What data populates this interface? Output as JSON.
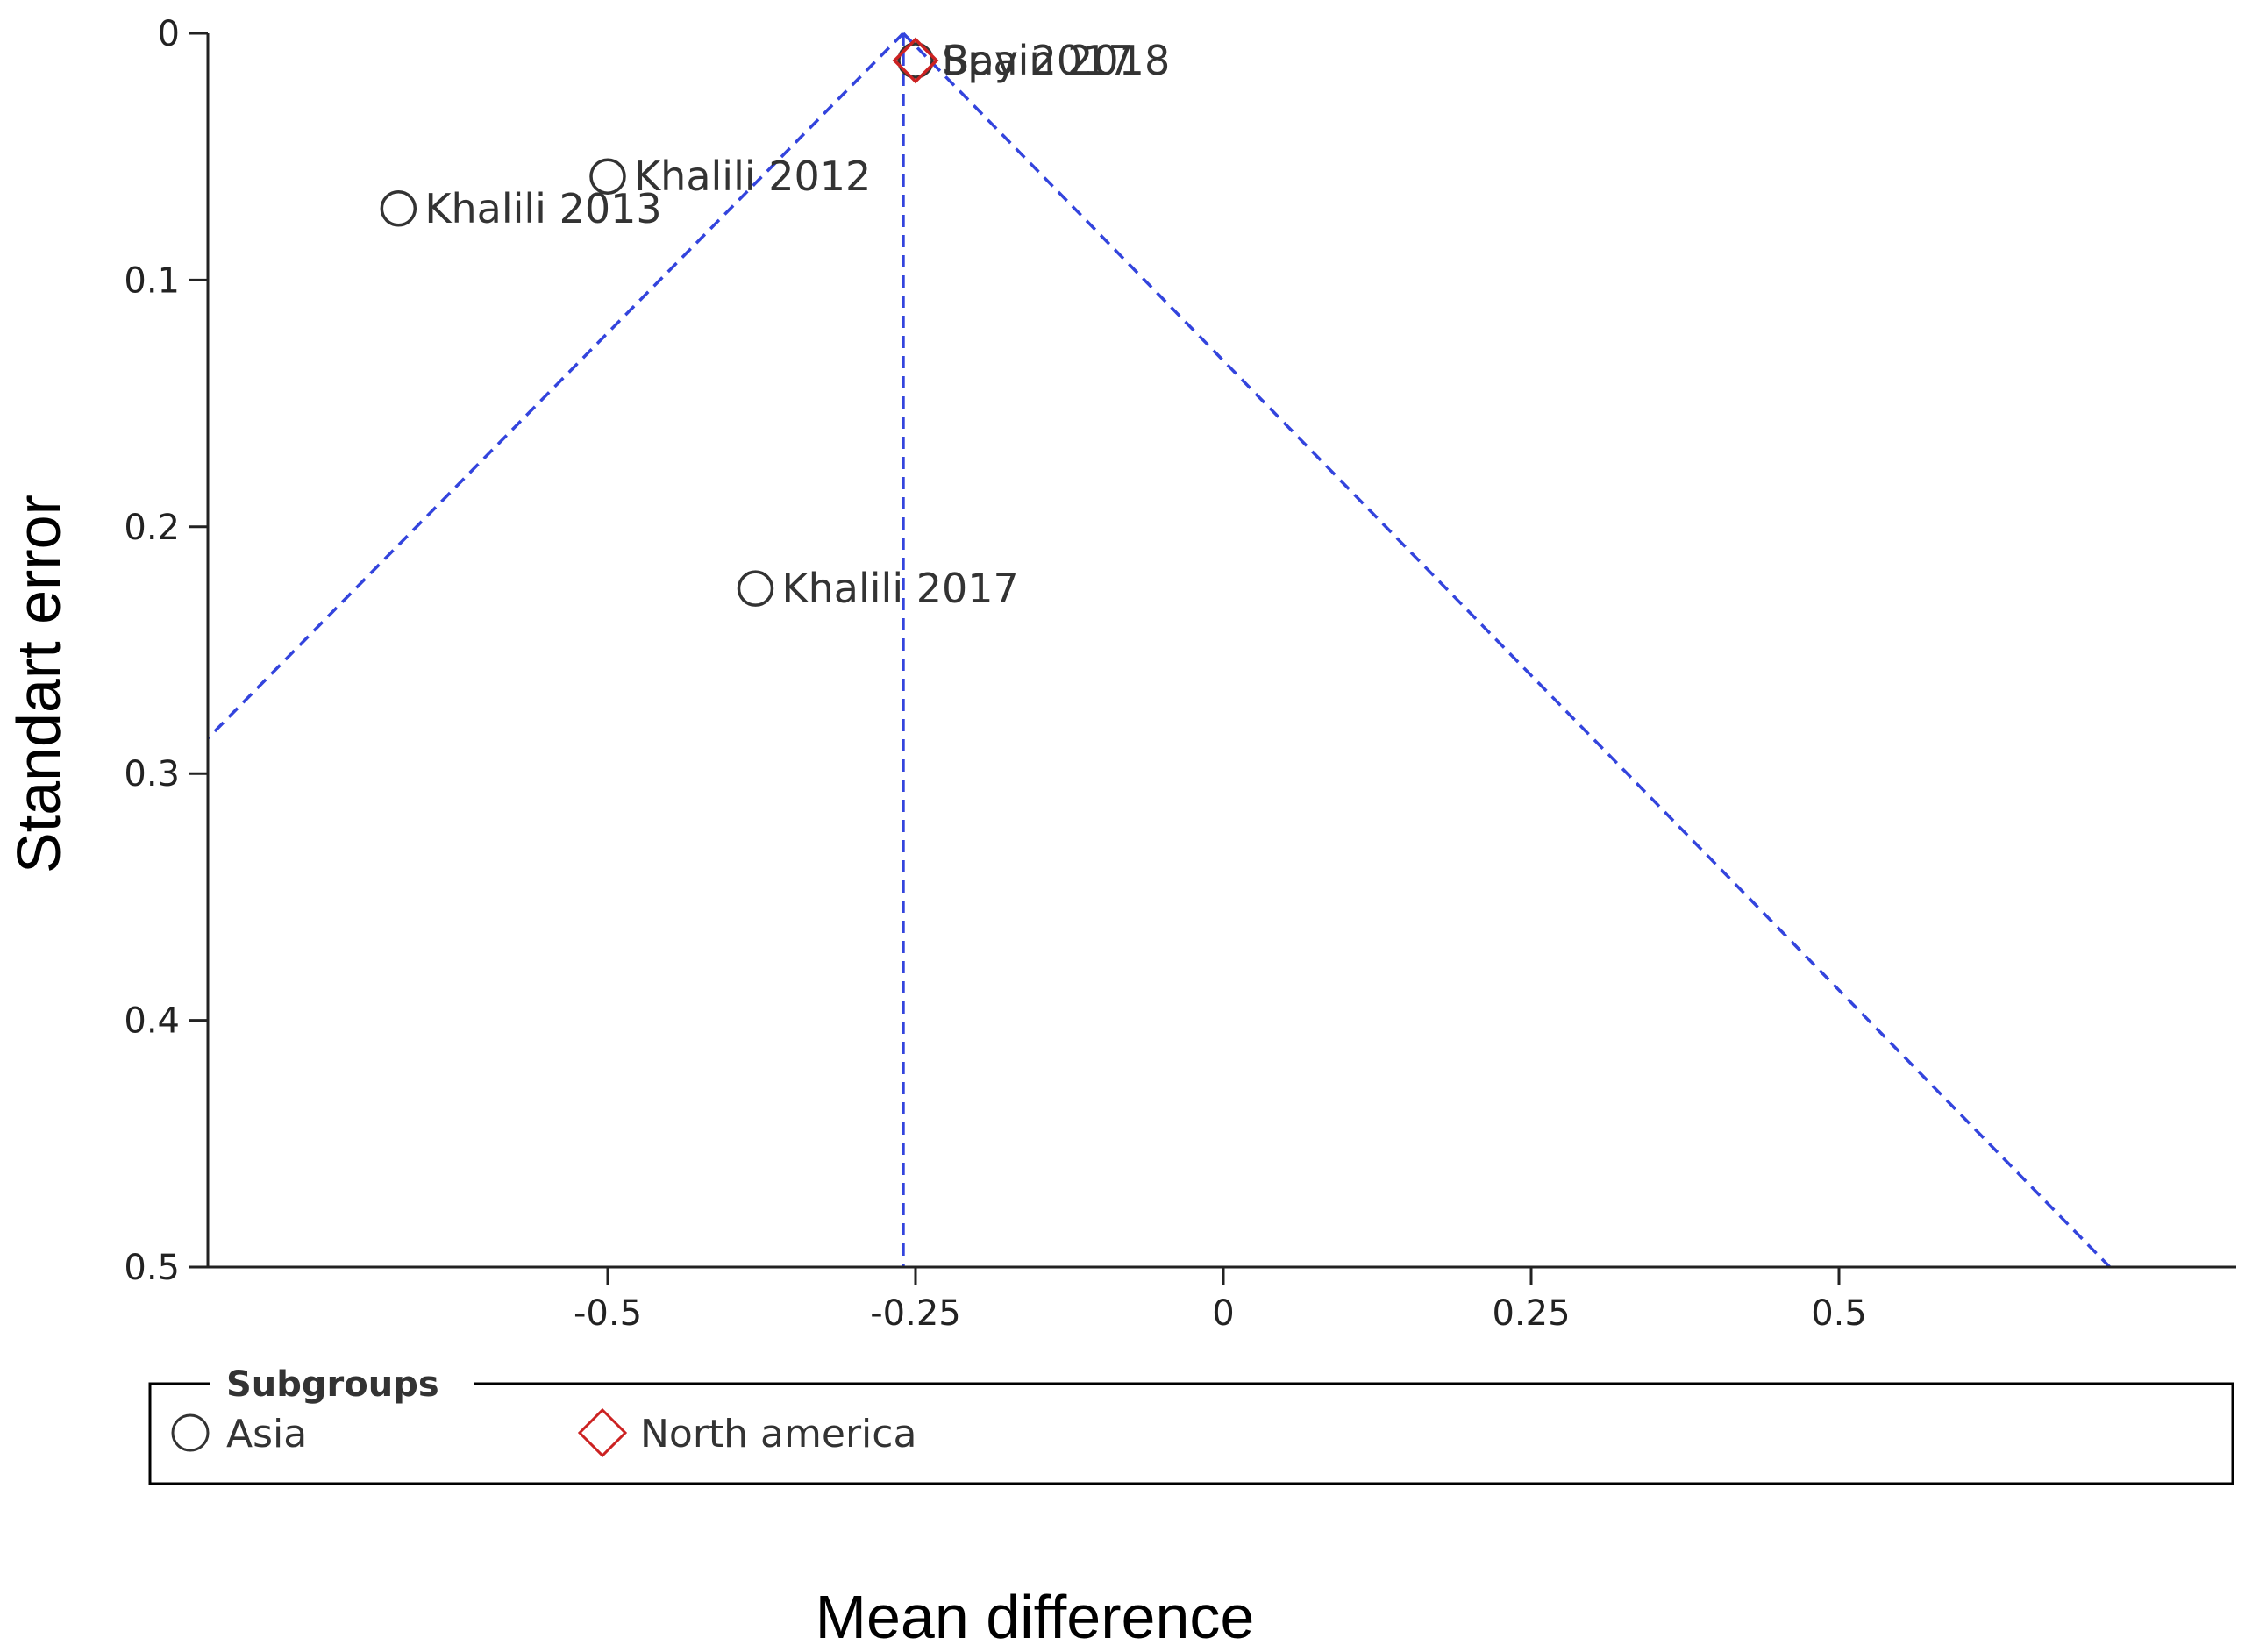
{
  "chart_data": {
    "type": "scatter",
    "title": "",
    "xlabel": "Mean difference",
    "ylabel": "Standart error",
    "xlim": [
      -0.82,
      0.82
    ],
    "ylim": [
      0,
      0.5
    ],
    "y_reversed": true,
    "x_ticks": [
      "-0.5",
      "-0.25",
      "0",
      "0.25",
      "0.5"
    ],
    "x_tick_values": [
      -0.5,
      -0.25,
      0,
      0.25,
      0.5
    ],
    "y_ticks": [
      "0",
      "0.1",
      "0.2",
      "0.3",
      "0.4",
      "0.5"
    ],
    "y_tick_values": [
      0,
      0.1,
      0.2,
      0.3,
      0.4,
      0.5
    ],
    "pooled_estimate": -0.26,
    "funnel": {
      "apex_x": -0.26,
      "apex_y": 0,
      "z": 1.96
    },
    "series": [
      {
        "name": "Asia",
        "marker": "circle",
        "color": "#333333",
        "points": [
          {
            "label": "Khalili 2012",
            "x": -0.5,
            "y": 0.058
          },
          {
            "label": "Khalili 2013",
            "x": -0.67,
            "y": 0.071
          },
          {
            "label": "Khalili 2017",
            "x": -0.38,
            "y": 0.225
          },
          {
            "label": "Bay 2017",
            "x": -0.25,
            "y": 0.011
          }
        ]
      },
      {
        "name": "North america",
        "marker": "diamond",
        "color": "#cc2222",
        "points": [
          {
            "label": "Spain 2018",
            "x": -0.25,
            "y": 0.011
          }
        ]
      }
    ],
    "legend": {
      "title": "Subgroups",
      "placement": "bottom"
    }
  }
}
